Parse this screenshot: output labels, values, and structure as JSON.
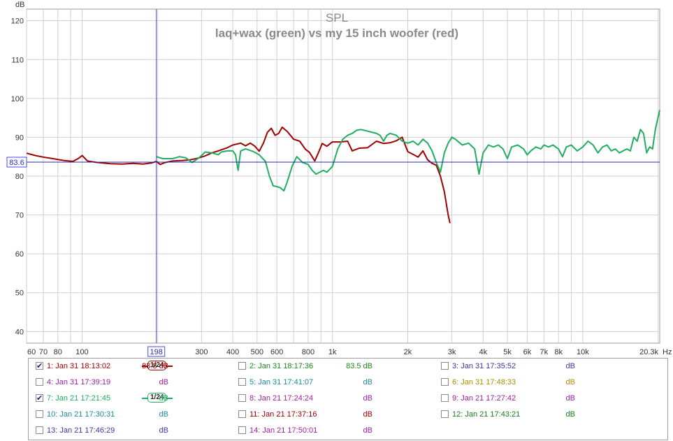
{
  "chart_data": {
    "type": "line",
    "title": "SPL",
    "subtitle": "laq+wax (green) vs my 15 inch woofer (red)",
    "ylabel": "dB",
    "xlabel": "Hz",
    "x_scale": "log",
    "xlim": [
      60,
      20300
    ],
    "ylim": [
      37,
      123
    ],
    "grid": true,
    "x_tick_labels": [
      "60",
      "70",
      "80",
      "100",
      "198",
      "300",
      "400",
      "500",
      "600",
      "800",
      "1k",
      "2k",
      "3k",
      "4k",
      "5k",
      "6k",
      "7k",
      "8k",
      "10k",
      "20.3k"
    ],
    "x_tick_values": [
      60,
      70,
      80,
      100,
      198,
      300,
      400,
      500,
      600,
      800,
      1000,
      2000,
      3000,
      4000,
      5000,
      6000,
      7000,
      8000,
      10000,
      20300
    ],
    "y_tick_labels": [
      "120",
      "110",
      "100",
      "90",
      "80",
      "70",
      "60",
      "50",
      "40"
    ],
    "y_tick_values": [
      120,
      110,
      100,
      90,
      80,
      70,
      60,
      50,
      40
    ],
    "cursor": {
      "x": 198,
      "x_label": "198",
      "y": 83.6,
      "y_label": "83.6"
    },
    "series": [
      {
        "color": "#a00000",
        "points": [
          [
            60,
            85.9
          ],
          [
            65,
            85.3
          ],
          [
            70,
            84.9
          ],
          [
            78,
            84.4
          ],
          [
            85,
            84.0
          ],
          [
            92,
            83.8
          ],
          [
            97,
            84.6
          ],
          [
            100,
            85.3
          ],
          [
            105,
            83.9
          ],
          [
            115,
            83.5
          ],
          [
            130,
            83.2
          ],
          [
            145,
            83.1
          ],
          [
            160,
            83.3
          ],
          [
            175,
            83.1
          ],
          [
            190,
            83.4
          ],
          [
            198,
            83.8
          ],
          [
            205,
            83.0
          ],
          [
            215,
            83.5
          ],
          [
            230,
            83.9
          ],
          [
            250,
            84.0
          ],
          [
            270,
            84.2
          ],
          [
            290,
            84.6
          ],
          [
            310,
            85.2
          ],
          [
            330,
            86.0
          ],
          [
            350,
            86.5
          ],
          [
            380,
            87.3
          ],
          [
            400,
            88.0
          ],
          [
            430,
            88.5
          ],
          [
            450,
            87.8
          ],
          [
            470,
            88.5
          ],
          [
            490,
            87.7
          ],
          [
            510,
            86.4
          ],
          [
            530,
            88.5
          ],
          [
            550,
            91.3
          ],
          [
            570,
            92.3
          ],
          [
            590,
            90.5
          ],
          [
            610,
            91.0
          ],
          [
            630,
            92.6
          ],
          [
            660,
            91.5
          ],
          [
            700,
            89.5
          ],
          [
            740,
            89.0
          ],
          [
            780,
            86.9
          ],
          [
            810,
            86.1
          ],
          [
            850,
            83.9
          ],
          [
            880,
            86.1
          ],
          [
            910,
            88.4
          ],
          [
            950,
            87.7
          ],
          [
            1000,
            88.8
          ],
          [
            1080,
            88.8
          ],
          [
            1150,
            89.0
          ],
          [
            1200,
            86.5
          ],
          [
            1280,
            87.2
          ],
          [
            1380,
            87.3
          ],
          [
            1500,
            89.0
          ],
          [
            1600,
            88.4
          ],
          [
            1700,
            88.6
          ],
          [
            1800,
            89.1
          ],
          [
            1900,
            90.0
          ],
          [
            2000,
            86.3
          ],
          [
            2100,
            85.6
          ],
          [
            2200,
            84.9
          ],
          [
            2300,
            86.5
          ],
          [
            2400,
            84.2
          ],
          [
            2500,
            83.3
          ],
          [
            2600,
            82.8
          ],
          [
            2700,
            80.0
          ],
          [
            2800,
            76.0
          ],
          [
            2900,
            70.0
          ],
          [
            2950,
            67.9
          ]
        ]
      },
      {
        "color": "#1fae62",
        "points": [
          [
            198,
            85.0
          ],
          [
            210,
            84.5
          ],
          [
            230,
            84.5
          ],
          [
            245,
            85.0
          ],
          [
            260,
            84.7
          ],
          [
            275,
            83.5
          ],
          [
            290,
            84.5
          ],
          [
            300,
            85.3
          ],
          [
            310,
            86.2
          ],
          [
            330,
            86.0
          ],
          [
            350,
            85.5
          ],
          [
            360,
            86.2
          ],
          [
            380,
            86.5
          ],
          [
            400,
            86.5
          ],
          [
            410,
            85.5
          ],
          [
            420,
            81.5
          ],
          [
            430,
            86.5
          ],
          [
            450,
            87.0
          ],
          [
            480,
            86.4
          ],
          [
            510,
            85.5
          ],
          [
            540,
            83.8
          ],
          [
            560,
            80.0
          ],
          [
            580,
            77.5
          ],
          [
            600,
            77.3
          ],
          [
            620,
            77.0
          ],
          [
            640,
            76.2
          ],
          [
            660,
            78.5
          ],
          [
            690,
            82.5
          ],
          [
            720,
            85.0
          ],
          [
            760,
            83.5
          ],
          [
            800,
            83.0
          ],
          [
            830,
            81.5
          ],
          [
            860,
            80.5
          ],
          [
            890,
            81.0
          ],
          [
            920,
            81.5
          ],
          [
            950,
            81.0
          ],
          [
            1000,
            82.5
          ],
          [
            1050,
            87.0
          ],
          [
            1100,
            89.5
          ],
          [
            1150,
            90.5
          ],
          [
            1200,
            91.0
          ],
          [
            1250,
            91.8
          ],
          [
            1300,
            92.0
          ],
          [
            1400,
            91.5
          ],
          [
            1500,
            91.0
          ],
          [
            1550,
            90.5
          ],
          [
            1600,
            89.0
          ],
          [
            1650,
            90.5
          ],
          [
            1700,
            91.0
          ],
          [
            1800,
            90.5
          ],
          [
            1900,
            89.0
          ],
          [
            2000,
            88.5
          ],
          [
            2100,
            89.0
          ],
          [
            2200,
            88.0
          ],
          [
            2300,
            89.5
          ],
          [
            2400,
            88.5
          ],
          [
            2500,
            86.5
          ],
          [
            2600,
            83.5
          ],
          [
            2700,
            81.0
          ],
          [
            2800,
            86.0
          ],
          [
            2900,
            88.5
          ],
          [
            3000,
            90.0
          ],
          [
            3100,
            89.5
          ],
          [
            3300,
            88.0
          ],
          [
            3500,
            88.5
          ],
          [
            3700,
            87.0
          ],
          [
            3850,
            80.5
          ],
          [
            4000,
            86.0
          ],
          [
            4200,
            88.0
          ],
          [
            4400,
            87.5
          ],
          [
            4600,
            88.0
          ],
          [
            4800,
            87.0
          ],
          [
            5000,
            84.5
          ],
          [
            5200,
            87.5
          ],
          [
            5500,
            88.0
          ],
          [
            5800,
            87.0
          ],
          [
            6000,
            85.5
          ],
          [
            6200,
            86.5
          ],
          [
            6500,
            87.5
          ],
          [
            6800,
            87.0
          ],
          [
            7000,
            88.0
          ],
          [
            7300,
            87.5
          ],
          [
            7600,
            88.0
          ],
          [
            8000,
            87.0
          ],
          [
            8300,
            85.0
          ],
          [
            8600,
            87.5
          ],
          [
            9000,
            88.0
          ],
          [
            9500,
            86.5
          ],
          [
            10000,
            87.5
          ],
          [
            10500,
            89.0
          ],
          [
            11000,
            88.0
          ],
          [
            11500,
            86.0
          ],
          [
            12000,
            87.5
          ],
          [
            12500,
            88.0
          ],
          [
            13000,
            86.5
          ],
          [
            13500,
            87.0
          ],
          [
            14000,
            86.0
          ],
          [
            15000,
            87.0
          ],
          [
            15500,
            86.5
          ],
          [
            16000,
            90.0
          ],
          [
            16500,
            89.0
          ],
          [
            17000,
            92.0
          ],
          [
            17500,
            91.0
          ],
          [
            18000,
            86.0
          ],
          [
            18500,
            87.5
          ],
          [
            19000,
            87.0
          ],
          [
            19500,
            92.0
          ],
          [
            20300,
            97.0
          ]
        ]
      }
    ]
  },
  "legend": {
    "rows": [
      [
        {
          "label": "1: Jan 31 18:13:02",
          "color": "#a00000",
          "checked": true,
          "smoothing": "1/24",
          "value": "83.8 dB"
        },
        {
          "label": "2: Jan 31 18:17:36",
          "color": "#1a8a1a",
          "checked": false,
          "value": "83.5 dB"
        },
        {
          "label": "3: Jan 31 17:35:52",
          "color": "#3a3aa0",
          "checked": false,
          "value": "dB"
        }
      ],
      [
        {
          "label": "4: Jan 31 17:39:19",
          "color": "#a020a0",
          "checked": false,
          "value": "dB"
        },
        {
          "label": "5: Jan 31 17:41:07",
          "color": "#1a8aa0",
          "checked": false,
          "value": "dB"
        },
        {
          "label": "6: Jan 31 17:48:33",
          "color": "#b09000",
          "checked": false,
          "value": "dB"
        }
      ],
      [
        {
          "label": "7: Jan 21 17:21:45",
          "color": "#1fae62",
          "checked": true,
          "smoothing": "1/24",
          "value": "dB"
        },
        {
          "label": "8: Jan 21 17:24:24",
          "color": "#a020a0",
          "checked": false,
          "value": "dB"
        },
        {
          "label": "9: Jan 21 17:27:42",
          "color": "#a020a0",
          "checked": false,
          "value": "dB"
        }
      ],
      [
        {
          "label": "10: Jan 21 17:30:31",
          "color": "#1a8aa0",
          "checked": false,
          "value": "dB"
        },
        {
          "label": "11: Jan 21 17:37:16",
          "color": "#a00000",
          "checked": false,
          "value": "dB"
        },
        {
          "label": "12: Jan 21 17:43:21",
          "color": "#1a7a1a",
          "checked": false,
          "value": "dB"
        }
      ],
      [
        {
          "label": "13: Jan 21 17:46:29",
          "color": "#3a3aa0",
          "checked": false,
          "value": "dB"
        },
        {
          "label": "14: Jan 21 17:50:01",
          "color": "#a020a0",
          "checked": false,
          "value": "dB"
        }
      ]
    ]
  }
}
